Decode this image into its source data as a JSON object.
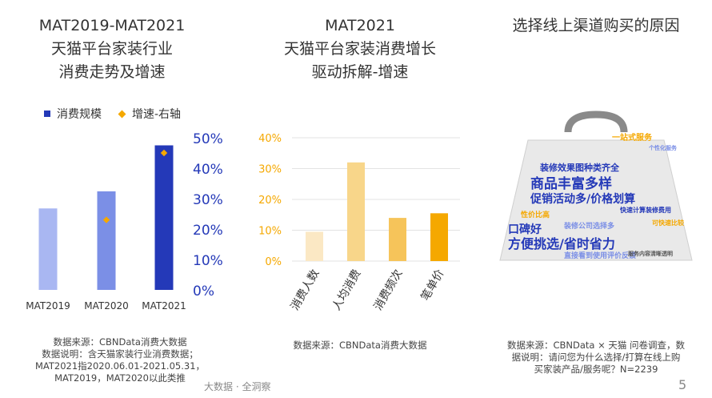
{
  "panel1": {
    "title_lines": [
      "MAT2019-MAT2021",
      "天猫平台家装行业",
      "消费走势及增速"
    ],
    "legend": {
      "bar": "消费规模",
      "marker": "增速-右轴"
    },
    "notes": [
      "数据来源：CBNData消费大数据",
      "数据说明：含天猫家装行业消费数据；",
      "MAT2021指2020.06.01-2021.05.31，",
      "MAT2019，MAT2020以此类推"
    ]
  },
  "panel2": {
    "title_lines": [
      "MAT2021",
      "天猫平台家装消费增长",
      "驱动拆解-增速"
    ],
    "notes": [
      "数据来源：CBNData消费大数据"
    ]
  },
  "panel3": {
    "title": "选择线上渠道购买的原因",
    "words": [
      "一站式服务",
      "个性化服务",
      "装修效果图种类齐全",
      "商品丰富多样",
      "促销活动多/价格划算",
      "性价比高",
      "快速计算装修费用",
      "口碑好",
      "装修公司选择多",
      "方便挑选/省时省力",
      "直接看到使用评价反馈",
      "服务内容清晰透明",
      "可快速比较"
    ],
    "notes": [
      "数据来源：CBNData × 天猫 问卷调查，数",
      "据说明：请问您为什么选择/打算在线上购",
      "买家装产品/服务呢？N=2239"
    ]
  },
  "footer": {
    "text": "大数据 · 全洞察",
    "page": "5"
  },
  "chart_data": [
    {
      "type": "bar",
      "categories": [
        "MAT2019",
        "MAT2020",
        "MAT2021"
      ],
      "series": [
        {
          "name": "消费规模",
          "values": [
            0.62,
            0.75,
            1.1
          ],
          "colors": [
            "#a9b7f2",
            "#7b8fe6",
            "#2439b8"
          ]
        },
        {
          "name": "增速-右轴",
          "values": [
            null,
            23,
            45
          ],
          "color": "#f5a800"
        }
      ],
      "y2_ticks": [
        "0%",
        "10%",
        "20%",
        "30%",
        "40%",
        "50%"
      ],
      "y2lim": [
        0,
        50
      ],
      "y2_color": "#2439b8"
    },
    {
      "type": "bar",
      "categories": [
        "消费人数",
        "人均消费",
        "消费频次",
        "笔单价"
      ],
      "values": [
        9.5,
        32,
        14,
        15.5
      ],
      "colors": [
        "#fbe8c4",
        "#f8d68a",
        "#f6c45a",
        "#f5a800"
      ],
      "y_ticks": [
        "0%",
        "10%",
        "20%",
        "30%",
        "40%"
      ],
      "ylim": [
        0,
        40
      ],
      "y_color": "#f5a800",
      "grid": true
    }
  ]
}
